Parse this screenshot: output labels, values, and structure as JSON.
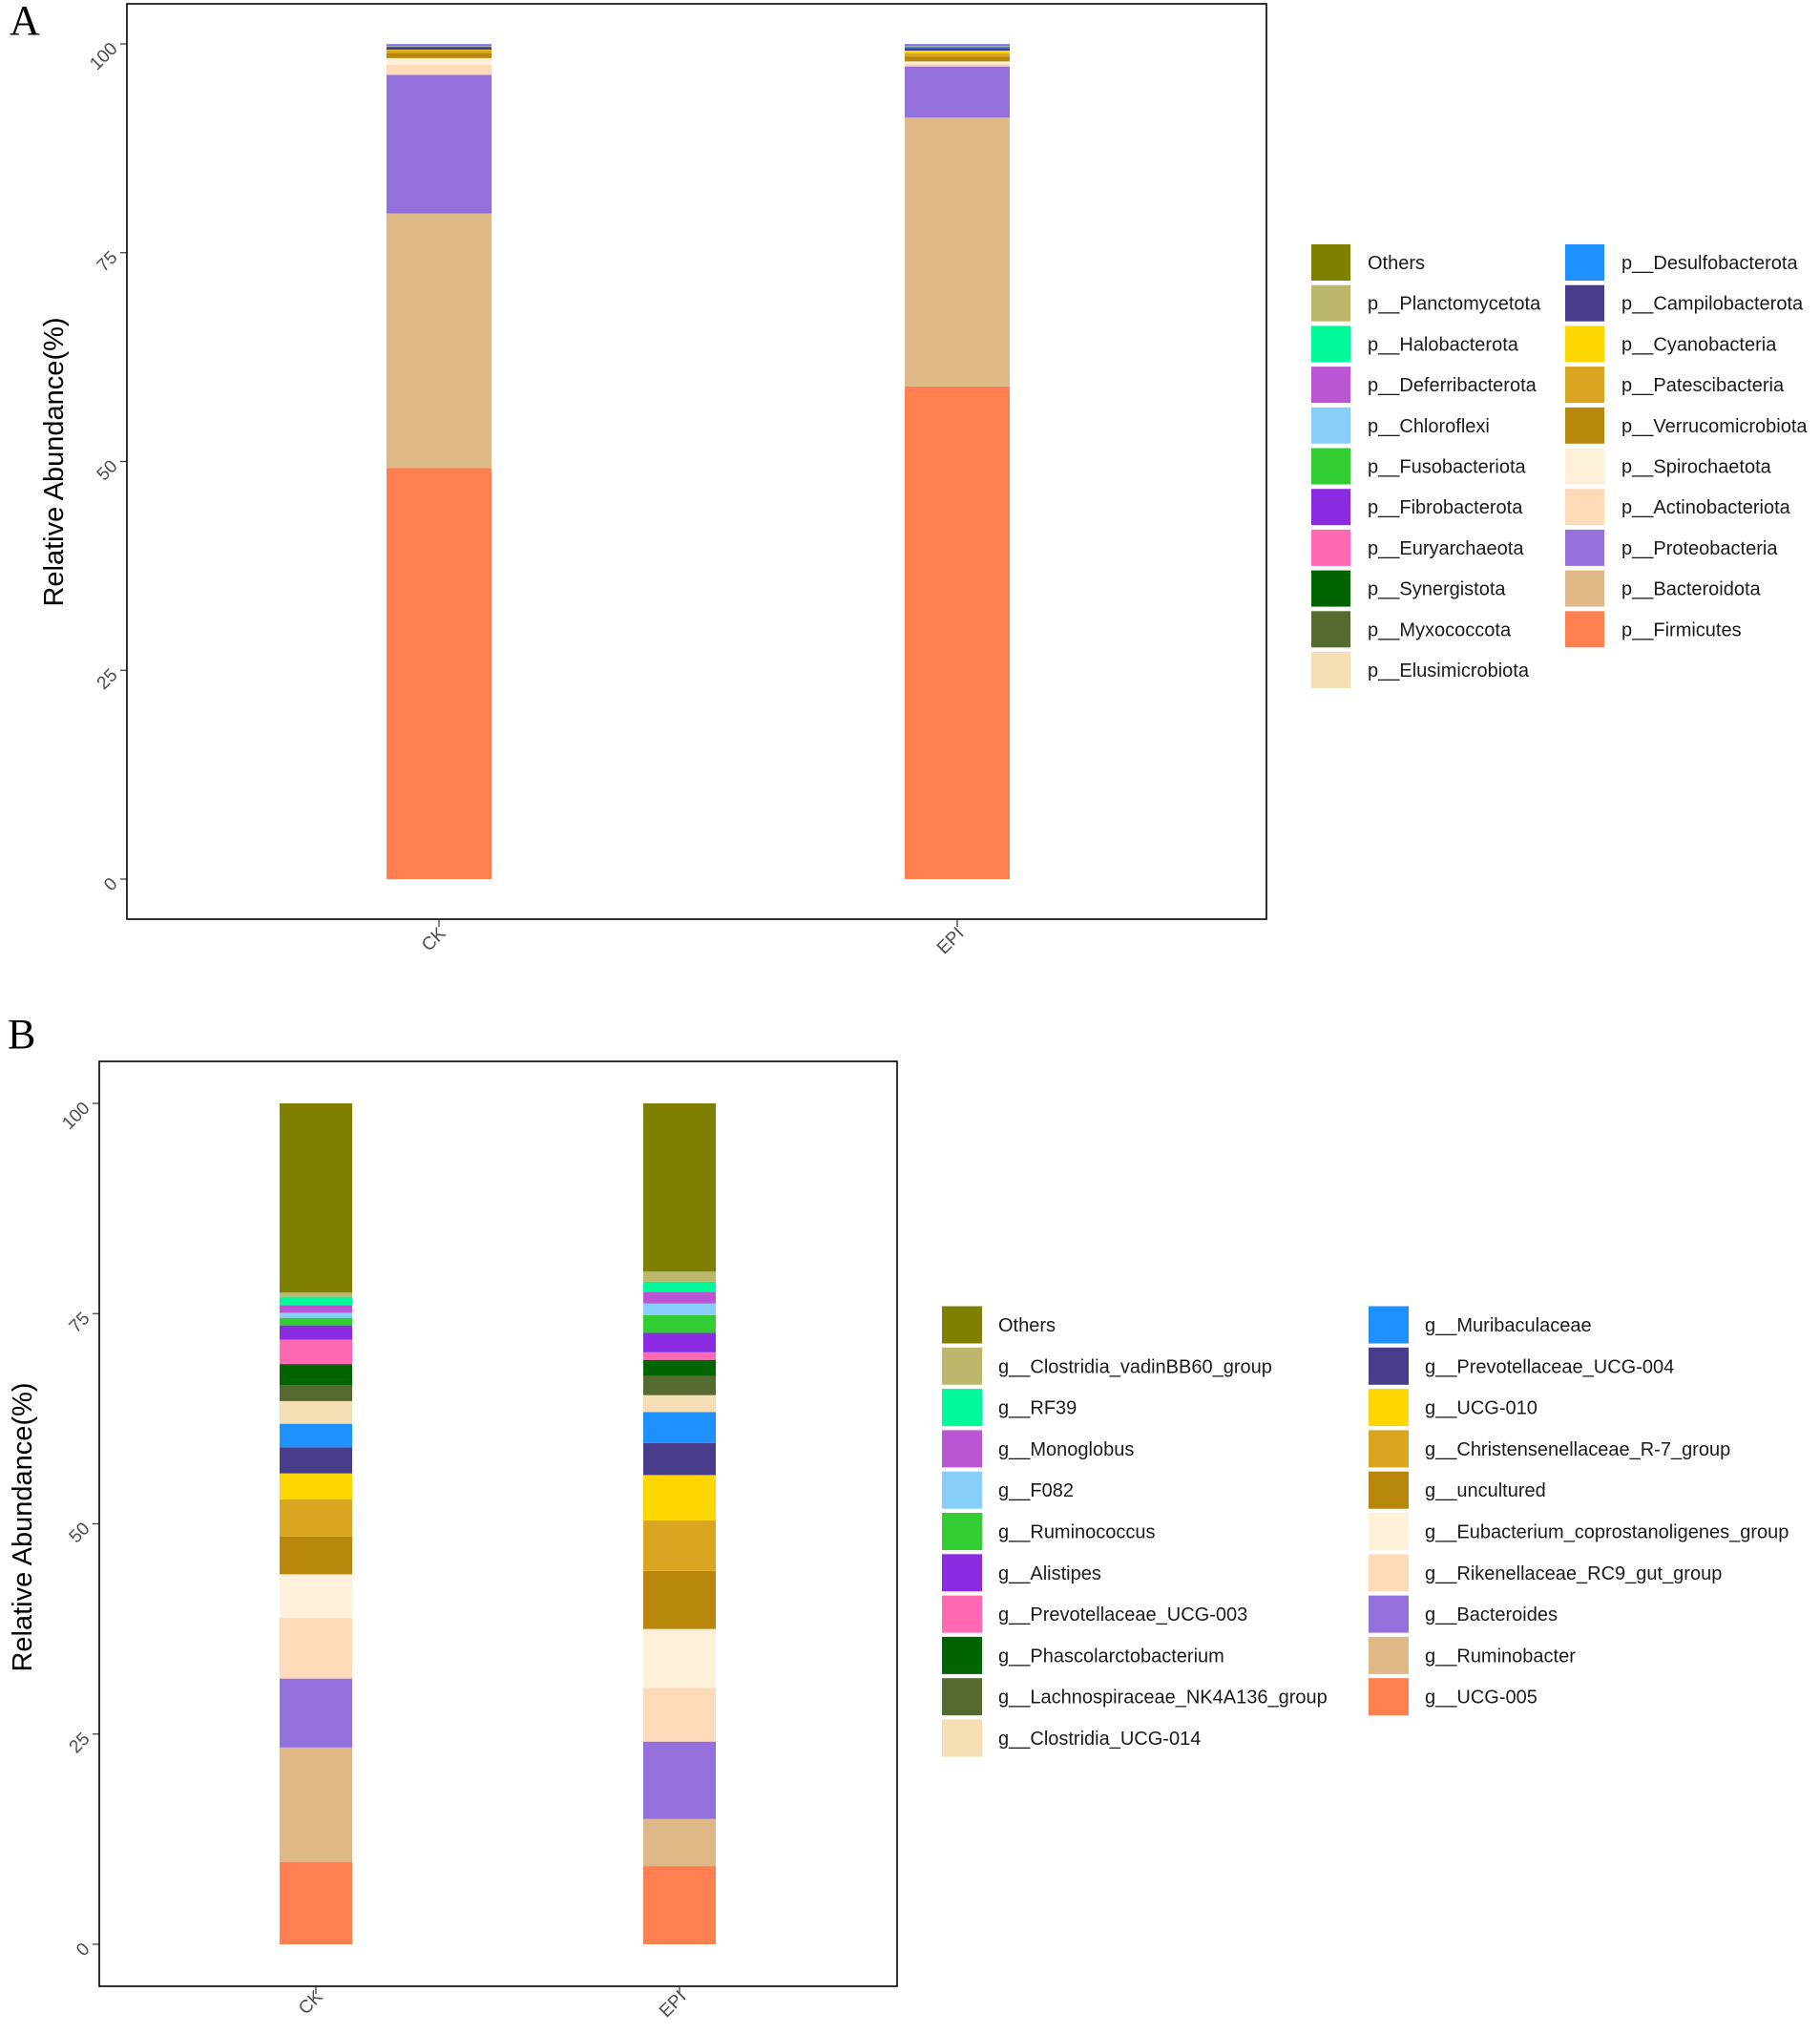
{
  "figure": {
    "panels": [
      "A",
      "B"
    ]
  },
  "chart_data": [
    {
      "type": "bar",
      "stacked": true,
      "panel_label": "A",
      "title": "",
      "xlabel": "",
      "ylabel": "Relative Abundance(%)",
      "ylim": [
        0,
        100
      ],
      "yticks": [
        "0",
        "25",
        "50",
        "75",
        "100"
      ],
      "categories": [
        "CK",
        "EPI"
      ],
      "series": [
        {
          "name": "p__Firmicutes",
          "color": "#FF7F50",
          "values": [
            49.2,
            59.0
          ]
        },
        {
          "name": "p__Bacteroidota",
          "color": "#DEB887",
          "values": [
            30.5,
            32.2
          ]
        },
        {
          "name": "p__Proteobacteria",
          "color": "#9370DB",
          "values": [
            16.6,
            6.1
          ]
        },
        {
          "name": "p__Actinobacteriota",
          "color": "#FFDAB9",
          "values": [
            1.2,
            0.3
          ]
        },
        {
          "name": "p__Spirochaetota",
          "color": "#FFF0DA",
          "values": [
            0.8,
            0.3
          ]
        },
        {
          "name": "p__Verrucomicrobiota",
          "color": "#B8860B",
          "values": [
            0.6,
            0.6
          ]
        },
        {
          "name": "p__Patescibacteria",
          "color": "#DAA520",
          "values": [
            0.3,
            0.4
          ]
        },
        {
          "name": "p__Cyanobacteria",
          "color": "#FFD700",
          "values": [
            0.1,
            0.3
          ]
        },
        {
          "name": "p__Campilobacterota",
          "color": "#483D8B",
          "values": [
            0.3,
            0.3
          ]
        },
        {
          "name": "p__Desulfobacterota",
          "color": "#1E90FF",
          "values": [
            0.1,
            0.2
          ]
        },
        {
          "name": "p__Elusimicrobiota",
          "color": "#F5DEB3",
          "values": [
            0.05,
            0.05
          ]
        },
        {
          "name": "p__Myxococcota",
          "color": "#556B2F",
          "values": [
            0.05,
            0.05
          ]
        },
        {
          "name": "p__Synergistota",
          "color": "#006400",
          "values": [
            0.05,
            0.05
          ]
        },
        {
          "name": "p__Euryarchaeota",
          "color": "#FF69B4",
          "values": [
            0.05,
            0.05
          ]
        },
        {
          "name": "p__Fibrobacterota",
          "color": "#8A2BE2",
          "values": [
            0.05,
            0.05
          ]
        },
        {
          "name": "p__Fusobacteriota",
          "color": "#32CD32",
          "values": [
            0.0,
            0.0
          ]
        },
        {
          "name": "p__Chloroflexi",
          "color": "#87CEFA",
          "values": [
            0.05,
            0.05
          ]
        },
        {
          "name": "p__Deferribacterota",
          "color": "#BA55D3",
          "values": [
            0.0,
            0.0
          ]
        },
        {
          "name": "p__Halobacterota",
          "color": "#00FA9A",
          "values": [
            0.0,
            0.0
          ]
        },
        {
          "name": "p__Planctomycetota",
          "color": "#BDB76B",
          "values": [
            0.0,
            0.0
          ]
        },
        {
          "name": "Others",
          "color": "#808000",
          "values": [
            0.0,
            0.0
          ]
        }
      ],
      "legend": {
        "columns": [
          [
            "Others",
            "p__Planctomycetota",
            "p__Halobacterota",
            "p__Deferribacterota",
            "p__Chloroflexi",
            "p__Fusobacteriota",
            "p__Fibrobacterota",
            "p__Euryarchaeota",
            "p__Synergistota",
            "p__Myxococcota",
            "p__Elusimicrobiota"
          ],
          [
            "p__Desulfobacterota",
            "p__Campilobacterota",
            "p__Cyanobacteria",
            "p__Patescibacteria",
            "p__Verrucomicrobiota",
            "p__Spirochaetota",
            "p__Actinobacteriota",
            "p__Proteobacteria",
            "p__Bacteroidota",
            "p__Firmicutes"
          ]
        ]
      }
    },
    {
      "type": "bar",
      "stacked": true,
      "panel_label": "B",
      "title": "",
      "xlabel": "",
      "ylabel": "Relative Abundance(%)",
      "ylim": [
        0,
        100
      ],
      "yticks": [
        "0",
        "25",
        "50",
        "75",
        "100"
      ],
      "categories": [
        "CK",
        "EPI"
      ],
      "series": [
        {
          "name": "g__UCG-005",
          "color": "#FF7F50",
          "values": [
            9.8,
            9.3
          ]
        },
        {
          "name": "g__Ruminobacter",
          "color": "#DEB887",
          "values": [
            13.6,
            5.6
          ]
        },
        {
          "name": "g__Bacteroides",
          "color": "#9370DB",
          "values": [
            8.2,
            9.2
          ]
        },
        {
          "name": "g__Rikenellaceae_RC9_gut_group",
          "color": "#FFDAB9",
          "values": [
            7.2,
            6.4
          ]
        },
        {
          "name": "g__Eubacterium_coprostanoligenes_group",
          "color": "#FFF0DA",
          "values": [
            5.2,
            7.0
          ]
        },
        {
          "name": "g__uncultured",
          "color": "#B8860B",
          "values": [
            4.5,
            6.9
          ]
        },
        {
          "name": "g__Christensenellaceae_R-7_group",
          "color": "#DAA520",
          "values": [
            4.4,
            6.0
          ]
        },
        {
          "name": "g__UCG-010",
          "color": "#FFD700",
          "values": [
            3.1,
            5.4
          ]
        },
        {
          "name": "g__Prevotellaceae_UCG-004",
          "color": "#483D8B",
          "values": [
            3.1,
            3.8
          ]
        },
        {
          "name": "g__Muribaculaceae",
          "color": "#1E90FF",
          "values": [
            2.8,
            3.7
          ]
        },
        {
          "name": "g__Clostridia_UCG-014",
          "color": "#F5DEB3",
          "values": [
            2.7,
            2.0
          ]
        },
        {
          "name": "g__Lachnospiraceae_NK4A136_group",
          "color": "#556B2F",
          "values": [
            1.9,
            2.3
          ]
        },
        {
          "name": "g__Phascolarctobacterium",
          "color": "#006400",
          "values": [
            2.5,
            1.9
          ]
        },
        {
          "name": "g__Prevotellaceae_UCG-003",
          "color": "#FF69B4",
          "values": [
            2.9,
            0.9
          ]
        },
        {
          "name": "g__Alistipes",
          "color": "#8A2BE2",
          "values": [
            1.7,
            2.3
          ]
        },
        {
          "name": "g__Ruminococcus",
          "color": "#32CD32",
          "values": [
            0.9,
            2.1
          ]
        },
        {
          "name": "g__F082",
          "color": "#87CEFA",
          "values": [
            0.6,
            1.4
          ]
        },
        {
          "name": "g__Monoglobus",
          "color": "#BA55D3",
          "values": [
            0.9,
            1.4
          ]
        },
        {
          "name": "g__RF39",
          "color": "#00FA9A",
          "values": [
            1.0,
            1.2
          ]
        },
        {
          "name": "g__Clostridia_vadinBB60_group",
          "color": "#BDB76B",
          "values": [
            0.5,
            1.2
          ]
        },
        {
          "name": "Others",
          "color": "#808000",
          "values": [
            22.5,
            20.0
          ]
        }
      ],
      "legend": {
        "columns": [
          [
            "Others",
            "g__Clostridia_vadinBB60_group",
            "g__RF39",
            "g__Monoglobus",
            "g__F082",
            "g__Ruminococcus",
            "g__Alistipes",
            "g__Prevotellaceae_UCG-003",
            "g__Phascolarctobacterium",
            "g__Lachnospiraceae_NK4A136_group",
            "g__Clostridia_UCG-014"
          ],
          [
            "g__Muribaculaceae",
            "g__Prevotellaceae_UCG-004",
            "g__UCG-010",
            "g__Christensenellaceae_R-7_group",
            "g__uncultured",
            "g__Eubacterium_coprostanoligenes_group",
            "g__Rikenellaceae_RC9_gut_group",
            "g__Bacteroides",
            "g__Ruminobacter",
            "g__UCG-005"
          ]
        ]
      }
    }
  ]
}
